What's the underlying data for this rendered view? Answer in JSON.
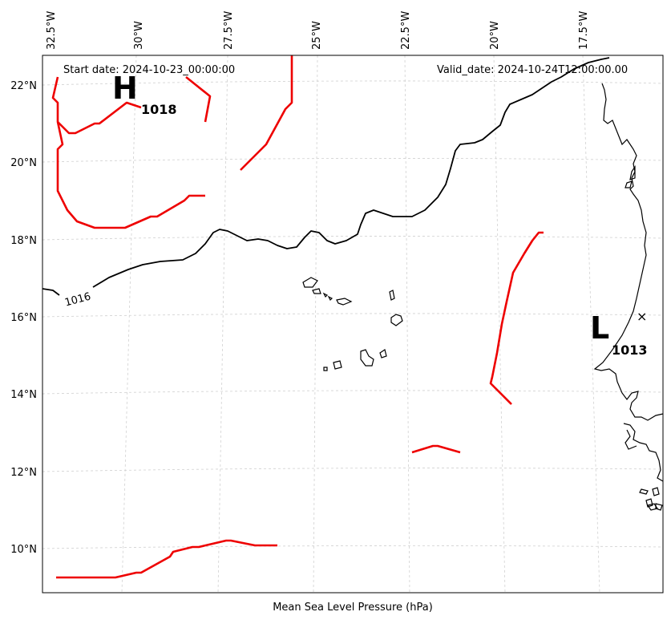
{
  "header": {
    "start_date": "Start date: 2024-10-23_00:00:00",
    "valid_date": "Valid_date: 2024-10-24T12:00:00.00"
  },
  "xlabel": "Mean Sea Level Pressure (hPa)",
  "lon_labels": [
    "32.5°W",
    "30°W",
    "27.5°W",
    "25°W",
    "22.5°W",
    "20°W",
    "17.5°W"
  ],
  "lat_labels": [
    "22°N",
    "20°N",
    "18°N",
    "16°N",
    "14°N",
    "12°N",
    "10°N"
  ],
  "systems": [
    {
      "letter": "H",
      "value": "1018"
    },
    {
      "letter": "L",
      "value": "1013"
    }
  ],
  "contour_label": "1016",
  "low_marker": "×",
  "colors": {
    "contour_1016": "#000000",
    "contour_other": "#ee0000"
  }
}
